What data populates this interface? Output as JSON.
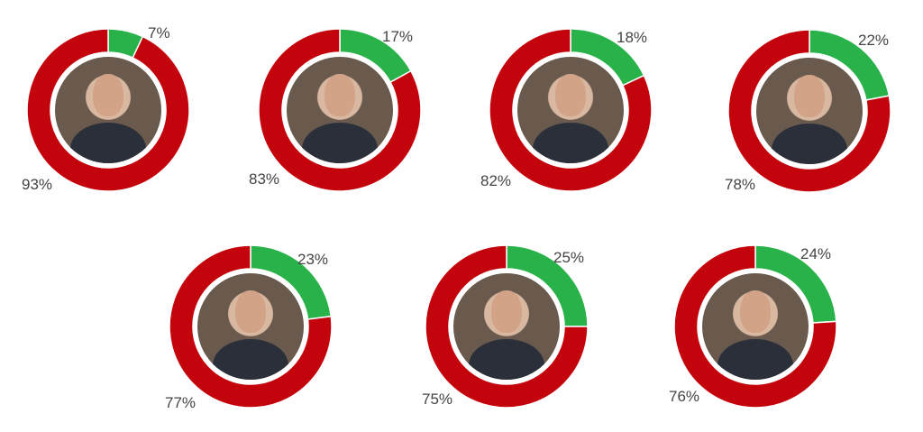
{
  "chart_data": [
    {
      "type": "pie",
      "values": [
        7,
        93
      ],
      "labels": [
        "7%",
        "93%"
      ],
      "colors": [
        "#2ab24a",
        "#c4040c"
      ],
      "photo": "female-politician-portrait"
    },
    {
      "type": "pie",
      "values": [
        17,
        83
      ],
      "labels": [
        "17%",
        "83%"
      ],
      "colors": [
        "#2ab24a",
        "#c4040c"
      ],
      "photo": "male-politician-portrait"
    },
    {
      "type": "pie",
      "values": [
        18,
        82
      ],
      "labels": [
        "18%",
        "82%"
      ],
      "colors": [
        "#2ab24a",
        "#c4040c"
      ],
      "photo": "male-politician-glasses-portrait"
    },
    {
      "type": "pie",
      "values": [
        22,
        78
      ],
      "labels": [
        "22%",
        "78%"
      ],
      "colors": [
        "#2ab24a",
        "#c4040c"
      ],
      "photo": "male-politician-portrait"
    },
    {
      "type": "pie",
      "values": [
        23,
        77
      ],
      "labels": [
        "23%",
        "77%"
      ],
      "colors": [
        "#2ab24a",
        "#c4040c"
      ],
      "photo": "male-politician-portrait"
    },
    {
      "type": "pie",
      "values": [
        25,
        75
      ],
      "labels": [
        "25%",
        "75%"
      ],
      "colors": [
        "#2ab24a",
        "#c4040c"
      ],
      "photo": "male-politician-glasses-portrait"
    },
    {
      "type": "pie",
      "values": [
        24,
        76
      ],
      "labels": [
        "24%",
        "76%"
      ],
      "colors": [
        "#2ab24a",
        "#c4040c"
      ],
      "photo": "male-politician-portrait"
    }
  ]
}
